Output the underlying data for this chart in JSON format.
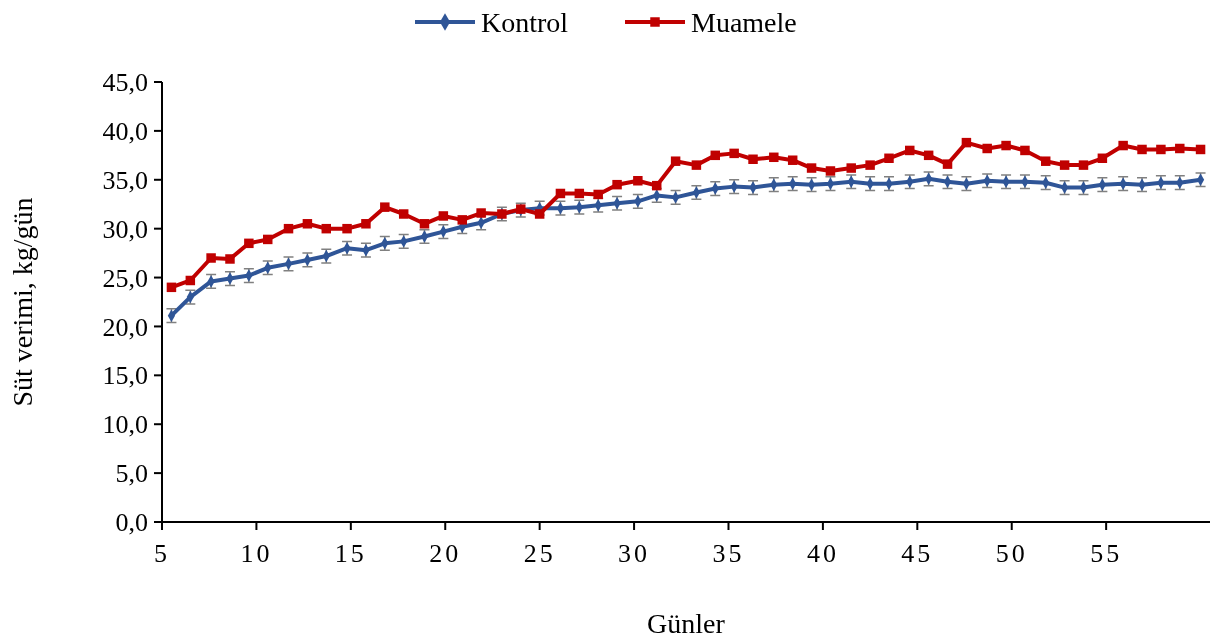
{
  "chart_data": {
    "type": "line",
    "xlabel": "Günler",
    "ylabel": "Süt verimi, kg/gün",
    "legend": "top",
    "grid": false,
    "xlim": [
      5,
      60.5
    ],
    "xticks": [
      5,
      10,
      15,
      20,
      25,
      30,
      35,
      40,
      45,
      50,
      55
    ],
    "ylim": [
      0,
      45
    ],
    "yticks": [
      {
        "value": 0,
        "label": "0,0"
      },
      {
        "value": 5,
        "label": "5,0"
      },
      {
        "value": 10,
        "label": "10,0"
      },
      {
        "value": 15,
        "label": "15,0"
      },
      {
        "value": 20,
        "label": "20,0"
      },
      {
        "value": 25,
        "label": "25,0"
      },
      {
        "value": 30,
        "label": "30,0"
      },
      {
        "value": 35,
        "label": "35,0"
      },
      {
        "value": 40,
        "label": "40,0"
      },
      {
        "value": 45,
        "label": "45,0"
      }
    ],
    "x": [
      5.5,
      6.5,
      7.6,
      8.6,
      9.6,
      10.6,
      11.7,
      12.7,
      13.7,
      14.8,
      15.8,
      16.8,
      17.8,
      18.9,
      19.9,
      20.9,
      21.9,
      23.0,
      24.0,
      25.0,
      26.1,
      27.1,
      28.1,
      29.1,
      30.2,
      31.2,
      32.2,
      33.3,
      34.3,
      35.3,
      36.3,
      37.4,
      38.4,
      39.4,
      40.4,
      41.5,
      42.5,
      43.5,
      44.6,
      45.6,
      46.6,
      47.6,
      48.7,
      49.7,
      50.7,
      51.8,
      52.8,
      53.8,
      54.8,
      55.9,
      56.9,
      57.9,
      58.9,
      60.0
    ],
    "series": [
      {
        "name": "Kontrol",
        "color": "#2f5597",
        "marker": "diamond",
        "values": [
          21.1,
          23.0,
          24.6,
          24.9,
          25.2,
          26.0,
          26.4,
          26.8,
          27.2,
          28.0,
          27.8,
          28.5,
          28.7,
          29.2,
          29.7,
          30.2,
          30.6,
          31.5,
          31.9,
          32.1,
          32.1,
          32.2,
          32.4,
          32.6,
          32.8,
          33.4,
          33.2,
          33.7,
          34.1,
          34.3,
          34.2,
          34.5,
          34.6,
          34.5,
          34.6,
          34.8,
          34.6,
          34.6,
          34.8,
          35.1,
          34.8,
          34.6,
          34.9,
          34.8,
          34.8,
          34.7,
          34.2,
          34.2,
          34.5,
          34.6,
          34.5,
          34.7,
          34.7,
          35.0
        ],
        "errors": [
          0.7,
          0.7,
          0.7,
          0.7,
          0.7,
          0.7,
          0.7,
          0.7,
          0.7,
          0.7,
          0.7,
          0.7,
          0.7,
          0.7,
          0.7,
          0.7,
          0.7,
          0.7,
          0.7,
          0.7,
          0.7,
          0.7,
          0.7,
          0.7,
          0.7,
          0.7,
          0.7,
          0.7,
          0.7,
          0.7,
          0.7,
          0.7,
          0.7,
          0.7,
          0.7,
          0.7,
          0.7,
          0.7,
          0.7,
          0.7,
          0.7,
          0.7,
          0.7,
          0.7,
          0.7,
          0.7,
          0.7,
          0.7,
          0.7,
          0.7,
          0.7,
          0.7,
          0.7,
          0.7
        ]
      },
      {
        "name": "Muamele",
        "color": "#c00000",
        "marker": "square",
        "values": [
          24.0,
          24.7,
          27.0,
          26.9,
          28.5,
          28.9,
          30.0,
          30.5,
          30.0,
          30.0,
          30.5,
          32.2,
          31.5,
          30.5,
          31.3,
          30.9,
          31.6,
          31.5,
          32.0,
          31.5,
          33.6,
          33.6,
          33.5,
          34.5,
          34.9,
          34.4,
          36.9,
          36.5,
          37.5,
          37.7,
          37.1,
          37.3,
          37.0,
          36.2,
          35.9,
          36.2,
          36.5,
          37.2,
          38.0,
          37.5,
          36.6,
          38.8,
          38.2,
          38.5,
          38.0,
          36.9,
          36.5,
          36.5,
          37.2,
          38.5,
          38.1,
          38.1,
          38.2,
          38.1
        ]
      }
    ]
  }
}
